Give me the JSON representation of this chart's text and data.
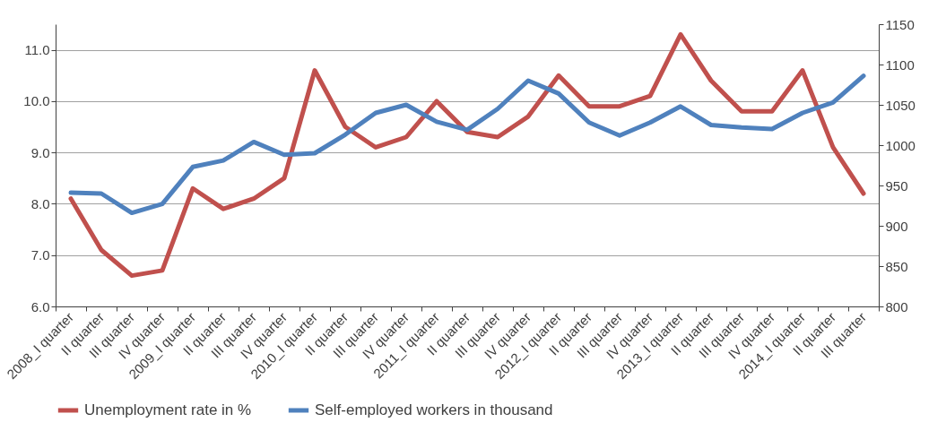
{
  "chart_data": {
    "type": "line",
    "categories": [
      "2008_I quarter",
      "II quarter",
      "III quarter",
      "IV quarter",
      "2009_I quarter",
      "II quarter",
      "III quarter",
      "IV quarter",
      "2010_I quarter",
      "II quarter",
      "III quarter",
      "IV quarter",
      "2011_I quarter",
      "II quarter",
      "III quarter",
      "IV quarter",
      "2012_I quarter",
      "II quarter",
      "III quarter",
      "IV quarter",
      "2013_I quarter",
      "II quarter",
      "III quarter",
      "IV quarter",
      "2014_I quarter",
      "II quarter",
      "III quarter"
    ],
    "series": [
      {
        "name": "Unemployment rate in %",
        "color": "#c0504d",
        "values": [
          8.1,
          7.1,
          6.6,
          6.7,
          8.3,
          7.9,
          8.1,
          8.5,
          10.6,
          9.5,
          9.1,
          9.3,
          10.0,
          9.4,
          9.3,
          9.7,
          10.5,
          9.9,
          9.9,
          10.1,
          11.3,
          10.4,
          9.8,
          9.8,
          10.6,
          9.1,
          8.2
        ]
      },
      {
        "name": "Self-employed workers in thousand",
        "color": "#4f81bd",
        "axis": "y2",
        "values": [
          941,
          940,
          916,
          927,
          973,
          981,
          1004,
          988,
          990,
          1013,
          1040,
          1050,
          1029,
          1019,
          1045,
          1080,
          1064,
          1028,
          1012,
          1028,
          1048,
          1025,
          1022,
          1020,
          1040,
          1053,
          1086
        ]
      }
    ],
    "ylim": [
      6,
      11.5
    ],
    "yticks": [
      {
        "value": 6,
        "label": "6.0"
      },
      {
        "value": 7,
        "label": "7.0"
      },
      {
        "value": 8,
        "label": "8.0"
      },
      {
        "value": 9,
        "label": "9.0"
      },
      {
        "value": 10,
        "label": "10.0"
      },
      {
        "value": 11,
        "label": "11.0"
      }
    ],
    "y2lim": [
      800,
      1150
    ],
    "y2ticks": [
      800,
      850,
      900,
      950,
      1000,
      1050,
      1100,
      1150
    ],
    "grid": "y",
    "legend": "bottom"
  }
}
